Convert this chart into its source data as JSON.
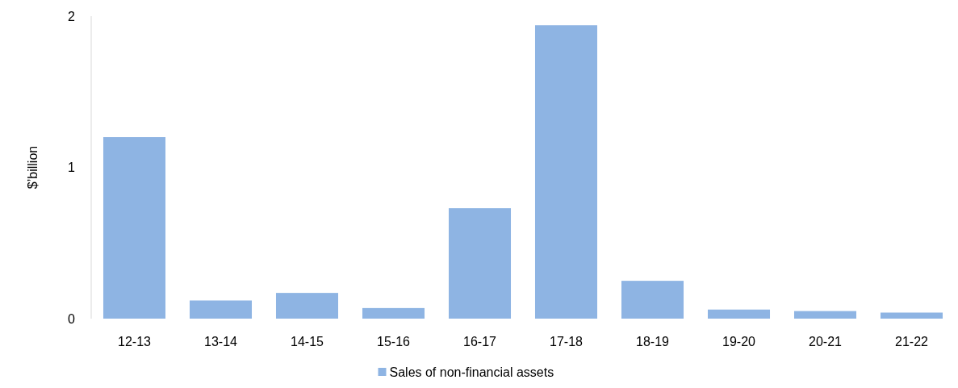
{
  "chart_data": {
    "type": "bar",
    "ylabel": "$’billion",
    "categories": [
      "12-13",
      "13-14",
      "14-15",
      "15-16",
      "16-17",
      "17-18",
      "18-19",
      "19-20",
      "20-21",
      "21-22"
    ],
    "series": [
      {
        "name": "Sales of non-financial assets",
        "color": "#8eb4e3",
        "values": [
          1.2,
          0.12,
          0.17,
          0.07,
          0.73,
          1.94,
          0.25,
          0.06,
          0.05,
          0.04
        ]
      }
    ],
    "ylim": [
      0,
      2
    ],
    "yticks": [
      0,
      1,
      2
    ],
    "grid": false,
    "legend": "bottom"
  }
}
